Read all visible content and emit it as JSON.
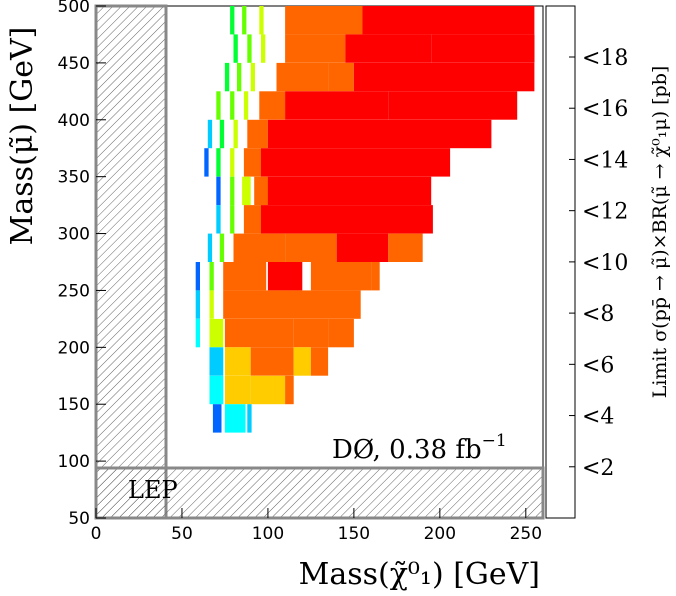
{
  "chart_data": {
    "type": "heatmap",
    "title": "",
    "xlabel": "Mass(χ̃⁰₁) [GeV]",
    "ylabel": "Mass(μ̃) [GeV]",
    "xlim": [
      0,
      260
    ],
    "ylim": [
      50,
      500
    ],
    "x_ticks": [
      "0",
      "50",
      "100",
      "150",
      "200",
      "250"
    ],
    "y_ticks": [
      "50",
      "100",
      "150",
      "200",
      "250",
      "300",
      "350",
      "400",
      "450",
      "500"
    ],
    "colorbar": {
      "label": "Limit σ(pp̄ → μ̃)×BR(μ̃ → χ̃⁰₁μ) [pb]",
      "ticks": [
        "<2",
        "<4",
        "<6",
        "<8",
        "<10",
        "<12",
        "<14",
        "<16",
        "<18"
      ],
      "range": [
        0,
        20
      ]
    },
    "annotation": "DØ, 0.38 fb",
    "annotation_superscript": "−1",
    "excluded_region_label": "LEP",
    "excluded_regions": [
      {
        "x": [
          0,
          43
        ],
        "y": [
          50,
          500
        ]
      },
      {
        "x": [
          0,
          260
        ],
        "y": [
          50,
          93
        ]
      }
    ],
    "bin_x": 10,
    "bin_y": 25,
    "colors": [
      "#ff0000",
      "#ff6600",
      "#ffcc00",
      "#ccff00",
      "#66ff00",
      "#00ff33",
      "#00ffff",
      "#00ccff",
      "#0066ff"
    ],
    "grid": false,
    "rows": [
      {
        "y": 487.5,
        "cells": [
          [
            78,
            2.5,
            10
          ],
          [
            85,
            2.5,
            8
          ],
          [
            95,
            2.5,
            6
          ],
          [
            110,
            45,
            3
          ],
          [
            155,
            100,
            1
          ]
        ]
      },
      {
        "y": 462.5,
        "cells": [
          [
            80,
            2.5,
            10
          ],
          [
            88,
            2.5,
            8
          ],
          [
            96,
            2.5,
            6
          ],
          [
            110,
            35,
            3
          ],
          [
            145,
            50,
            1
          ],
          [
            195,
            60,
            1
          ]
        ]
      },
      {
        "y": 437.5,
        "cells": [
          [
            75,
            2.5,
            10
          ],
          [
            82,
            2.5,
            8
          ],
          [
            90,
            2.5,
            6
          ],
          [
            105,
            30,
            3
          ],
          [
            135,
            15,
            2
          ],
          [
            150,
            105,
            1
          ]
        ]
      },
      {
        "y": 412.5,
        "cells": [
          [
            70,
            2.5,
            9
          ],
          [
            78,
            2.5,
            8
          ],
          [
            86,
            2.5,
            6
          ],
          [
            95,
            15,
            3
          ],
          [
            110,
            60,
            1
          ],
          [
            170,
            75,
            1
          ]
        ]
      },
      {
        "y": 387.5,
        "cells": [
          [
            65,
            2.5,
            14
          ],
          [
            72,
            2.5,
            10
          ],
          [
            80,
            2.5,
            6
          ],
          [
            88,
            12,
            3
          ],
          [
            100,
            130,
            1
          ]
        ]
      },
      {
        "y": 362.5,
        "cells": [
          [
            63,
            2.5,
            17
          ],
          [
            70,
            2.5,
            10
          ],
          [
            78,
            2.5,
            6
          ],
          [
            86,
            10,
            3
          ],
          [
            96,
            110,
            1
          ]
        ]
      },
      {
        "y": 337.5,
        "cells": [
          [
            70,
            2.5,
            16
          ],
          [
            78,
            2.5,
            8
          ],
          [
            85,
            5,
            6
          ],
          [
            92,
            8,
            3
          ],
          [
            100,
            95,
            1
          ]
        ]
      },
      {
        "y": 312.5,
        "cells": [
          [
            70,
            2.5,
            15
          ],
          [
            78,
            2.5,
            8
          ],
          [
            86,
            10,
            3
          ],
          [
            96,
            100,
            1
          ]
        ]
      },
      {
        "y": 287.5,
        "cells": [
          [
            65,
            2.5,
            14
          ],
          [
            72,
            2.5,
            8
          ],
          [
            80,
            30,
            3
          ],
          [
            110,
            30,
            2
          ],
          [
            140,
            30,
            1
          ],
          [
            170,
            20,
            3
          ]
        ]
      },
      {
        "y": 262.5,
        "cells": [
          [
            58,
            2.5,
            17
          ],
          [
            66,
            2.5,
            8
          ],
          [
            74,
            25,
            3
          ],
          [
            100,
            20,
            1
          ],
          [
            125,
            35,
            3
          ],
          [
            160,
            5,
            2
          ]
        ]
      },
      {
        "y": 237.5,
        "cells": [
          [
            58,
            2.5,
            14
          ],
          [
            66,
            2.5,
            6
          ],
          [
            74,
            80,
            3
          ]
        ]
      },
      {
        "y": 212.5,
        "cells": [
          [
            58,
            2.5,
            12
          ],
          [
            66,
            8,
            6
          ],
          [
            75,
            40,
            3
          ],
          [
            115,
            20,
            3
          ],
          [
            135,
            15,
            2
          ]
        ]
      },
      {
        "y": 187.5,
        "cells": [
          [
            66,
            8,
            14
          ],
          [
            75,
            15,
            4
          ],
          [
            90,
            25,
            3
          ],
          [
            115,
            10,
            4
          ],
          [
            125,
            10,
            3
          ]
        ]
      },
      {
        "y": 162.5,
        "cells": [
          [
            66,
            8,
            13
          ],
          [
            75,
            15,
            5
          ],
          [
            90,
            20,
            4
          ],
          [
            110,
            5,
            3
          ]
        ]
      },
      {
        "y": 137.5,
        "cells": [
          [
            68,
            5,
            17
          ],
          [
            75,
            12,
            13
          ],
          [
            88,
            2.5,
            14
          ]
        ]
      }
    ]
  }
}
